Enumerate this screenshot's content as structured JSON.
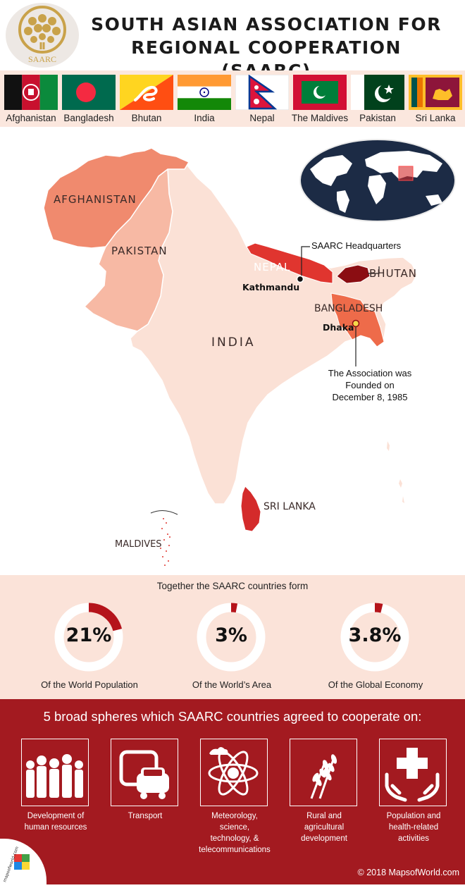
{
  "header": {
    "logo_text": "SAARC",
    "title_line1": "SOUTH ASIAN ASSOCIATION FOR",
    "title_line2": "REGIONAL COOPERATION (SAARC)"
  },
  "countries": [
    {
      "name": "Afghanistan",
      "flag": "flag-afghanistan-icon"
    },
    {
      "name": "Bangladesh",
      "flag": "flag-bangladesh-icon"
    },
    {
      "name": "Bhutan",
      "flag": "flag-bhutan-icon"
    },
    {
      "name": "India",
      "flag": "flag-india-icon"
    },
    {
      "name": "Nepal",
      "flag": "flag-nepal-icon"
    },
    {
      "name": "The Maldives",
      "flag": "flag-maldives-icon"
    },
    {
      "name": "Pakistan",
      "flag": "flag-pakistan-icon"
    },
    {
      "name": "Sri Lanka",
      "flag": "flag-srilanka-icon"
    }
  ],
  "map": {
    "labels": {
      "afghanistan": "AFGHANISTAN",
      "pakistan": "PAKISTAN",
      "nepal": "NEPAL",
      "bhutan": "BHUTAN",
      "bangladesh": "BANGLADESH",
      "india": "INDIA",
      "srilanka": "SRI LANKA",
      "maldives": "MALDIVES",
      "kathmandu": "Kathmandu",
      "dhaka": "Dhaka"
    },
    "hq_callout": "SAARC Headquarters",
    "founded_line1": "The Association was",
    "founded_line2": "Founded on",
    "founded_line3": "December 8, 1985",
    "colors": {
      "afghanistan": "#f08a6e",
      "pakistan": "#f7b9a4",
      "india": "#fbe1d6",
      "nepal": "#e0352f",
      "bhutan": "#8b0d12",
      "bangladesh": "#ee6b4a",
      "srilanka": "#d42b2b"
    }
  },
  "stats": {
    "heading": "Together the SAARC countries form",
    "items": [
      {
        "value": "21%",
        "label": "Of the World Population",
        "fraction": 0.21
      },
      {
        "value": "3%",
        "label": "Of the World’s Area",
        "fraction": 0.03
      },
      {
        "value": "3.8%",
        "label": "Of the Global Economy",
        "fraction": 0.038
      }
    ],
    "accent": "#b5141b",
    "track": "#ffffff"
  },
  "spheres": {
    "heading": "5 broad spheres which SAARC countries agreed to cooperate on:",
    "items": [
      {
        "icon": "people-crowd-icon",
        "label_lines": [
          "Development of",
          "human resources"
        ]
      },
      {
        "icon": "transport-vehicles-icon",
        "label_lines": [
          "Transport"
        ]
      },
      {
        "icon": "science-atom-icon",
        "label_lines": [
          "Meteorology,",
          "science,",
          "technology, &",
          "telecommunications"
        ]
      },
      {
        "icon": "wheat-icon",
        "label_lines": [
          "Rural and",
          "agricultural",
          "development"
        ]
      },
      {
        "icon": "health-hands-icon",
        "label_lines": [
          "Population and",
          "health-related",
          "activities"
        ]
      }
    ]
  },
  "footer": {
    "copyright": "© 2018 MapsofWorld.com",
    "badge_text": "mapsofworld.com"
  }
}
